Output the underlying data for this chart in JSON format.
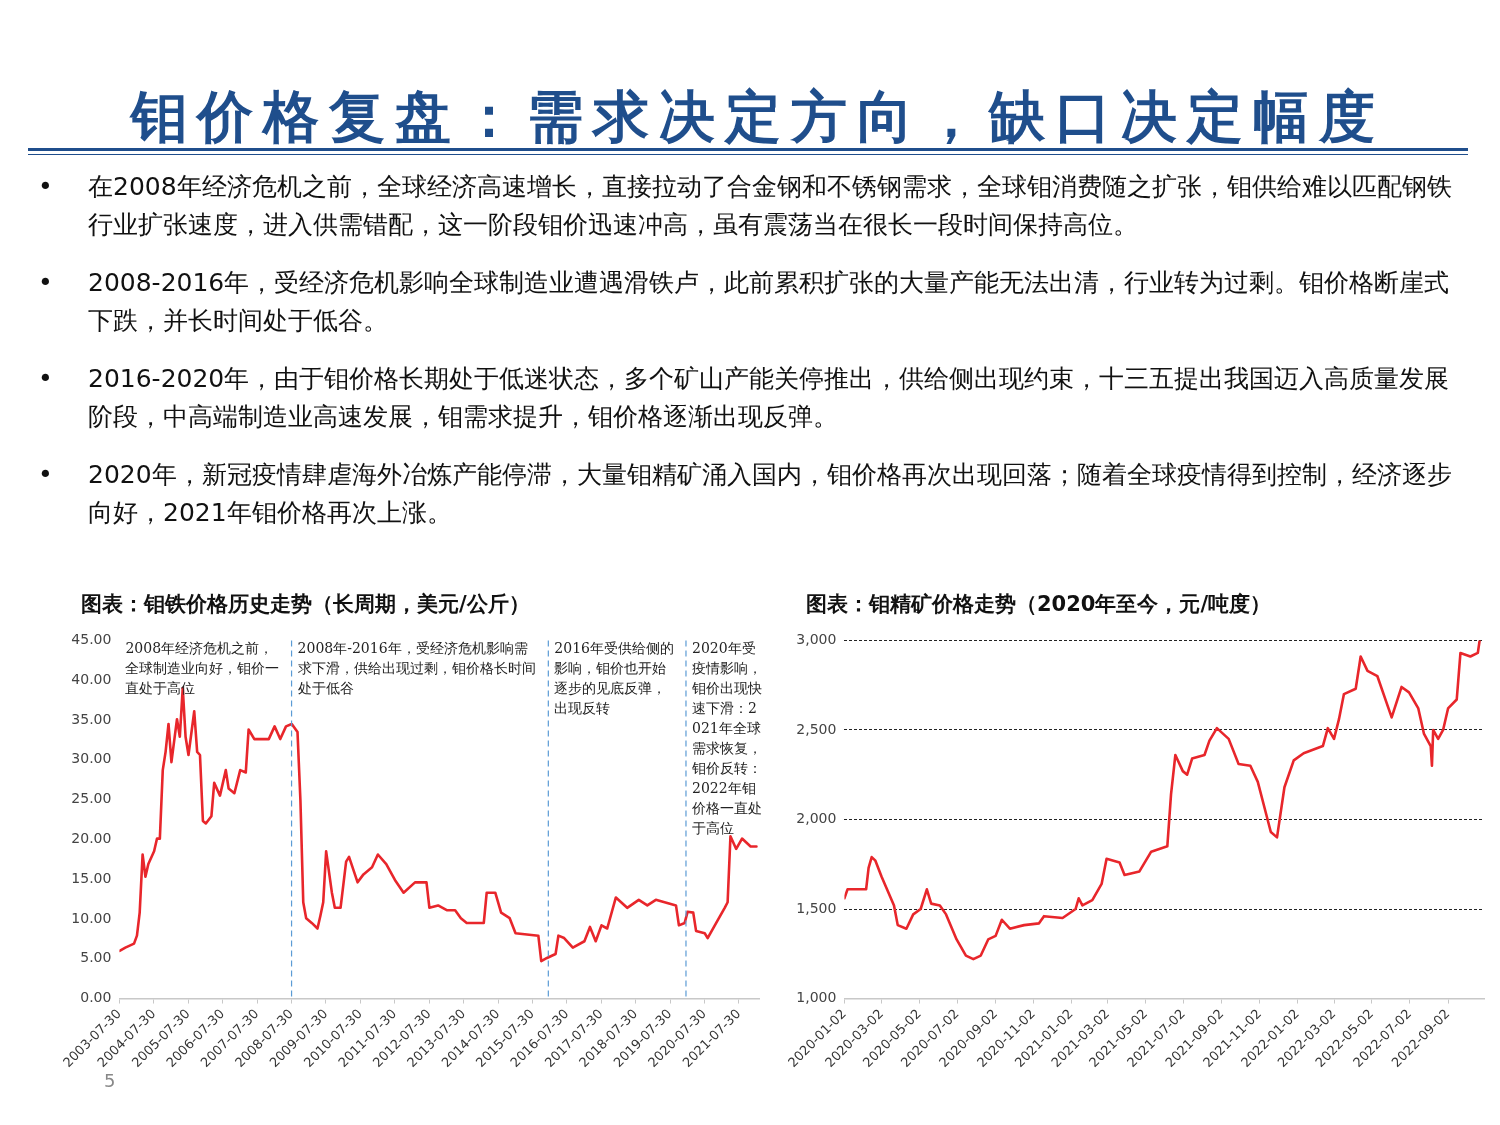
{
  "chart_data": [
    {
      "type": "other",
      "title": "钼价格复盘：需求决定方向，缺口决定幅度",
      "annotations": [
        "•\t在2008年经济危机之前，全球经济高速增长，直接拉动了合金钢和不锈钢需求，全球钼消费随之扩张，钼供给难以匹配钢铁行业扩张速度，进入供需错配，这一阶段钼价迅速冲高，虽有震荡当在很长一段时间保持高位。",
        "•\t2008-2016年，受经济危机影响全球制造业遭遇滑铁卢，此前累积扩张的大量产能无法出清，行业转为过剩。钼价格断崖式下跌，并长时间处于低谷。",
        "•\t2016-2020年，由于钼价格长期处于低迷状态，多个矿山产能关停推出，供给侧出现约束，十三五提出我国迈入高质量发展阶段，中高端制造业高速发展，钼需求提升，钼价格逐渐出现反弹。",
        "•\t2020年，新冠疫情肆虐海外冶炼产能停滞，大量钼精矿涌入国内，钼价格再次出现回落；随着全球疫情得到控制，经济逐步向好，2021年钼价格再次上涨。",
        "5"
      ]
    },
    {
      "type": "line",
      "title": "图表：钼铁价格历史走势（长周期，美元/公斤）",
      "marker": "none",
      "grid": false,
      "xlim": [
        "2003-07-30",
        "2022-02-28"
      ],
      "xticks": [
        "2003-07-30",
        "2004-07-30",
        "2005-07-30",
        "2006-07-30",
        "2007-07-30",
        "2008-07-30",
        "2009-07-30",
        "2010-07-30",
        "2011-07-30",
        "2012-07-30",
        "2013-07-30",
        "2014-07-30",
        "2015-07-30",
        "2016-07-30",
        "2017-07-30",
        "2018-07-30",
        "2019-07-30",
        "2020-07-30",
        "2021-07-30"
      ],
      "ylim": [
        0,
        45
      ],
      "yticks": [
        {
          "value": 0,
          "label": "0.00"
        },
        {
          "value": 5,
          "label": "5.00"
        },
        {
          "value": 10,
          "label": "10.00"
        },
        {
          "value": 15,
          "label": "15.00"
        },
        {
          "value": 20,
          "label": "20.00"
        },
        {
          "value": 25,
          "label": "25.00"
        },
        {
          "value": 30,
          "label": "30.00"
        },
        {
          "value": 35,
          "label": "35.00"
        },
        {
          "value": 40,
          "label": "40.00"
        },
        {
          "value": 45,
          "label": "45.00"
        }
      ],
      "x": [
        "2003-08",
        "2003-10",
        "2004-01",
        "2004-02",
        "2004-03",
        "2004-04",
        "2004-05",
        "2004-06",
        "2004-08",
        "2004-09",
        "2004-10",
        "2004-11",
        "2004-12",
        "2005-01",
        "2005-02",
        "2005-04",
        "2005-05",
        "2005-06",
        "2005-07",
        "2005-08",
        "2005-10",
        "2005-11",
        "2005-12",
        "2006-01",
        "2006-02",
        "2006-04",
        "2006-05",
        "2006-07",
        "2006-09",
        "2006-10",
        "2006-12",
        "2007-02",
        "2007-04",
        "2007-05",
        "2007-07",
        "2007-12",
        "2008-02",
        "2008-04",
        "2008-06",
        "2008-08",
        "2008-10",
        "2008-11",
        "2008-12",
        "2009-01",
        "2009-03",
        "2009-05",
        "2009-06",
        "2009-07",
        "2009-08",
        "2009-10",
        "2009-11",
        "2010-01",
        "2010-03",
        "2010-04",
        "2010-07",
        "2010-09",
        "2010-12",
        "2011-02",
        "2011-05",
        "2011-08",
        "2011-11",
        "2012-03",
        "2012-07",
        "2012-08",
        "2012-11",
        "2013-02",
        "2013-05",
        "2013-07",
        "2013-09",
        "2014-03",
        "2014-04",
        "2014-07",
        "2014-09",
        "2014-12",
        "2015-02",
        "2015-10",
        "2015-11",
        "2016-01",
        "2016-04",
        "2016-05",
        "2016-07",
        "2016-10",
        "2017-02",
        "2017-04",
        "2017-06",
        "2017-08",
        "2017-10",
        "2018-01",
        "2018-05",
        "2018-09",
        "2018-12",
        "2019-03",
        "2019-10",
        "2019-11",
        "2020-01",
        "2020-02",
        "2020-04",
        "2020-05",
        "2020-08",
        "2020-09",
        "2020-12",
        "2021-03",
        "2021-04",
        "2021-05",
        "2021-07",
        "2021-09",
        "2021-12",
        "2022-02"
      ],
      "series": [
        {
          "color": "#e8262b",
          "values": [
            6.0,
            6.4,
            6.9,
            7.9,
            10.8,
            18.1,
            15.3,
            16.9,
            18.5,
            20.1,
            20.1,
            28.7,
            31.0,
            34.5,
            29.7,
            35.1,
            32.9,
            39.0,
            32.9,
            30.6,
            36.1,
            31.0,
            30.6,
            22.3,
            22.0,
            22.9,
            27.1,
            25.5,
            28.7,
            26.4,
            25.8,
            28.7,
            28.4,
            33.8,
            32.6,
            32.6,
            34.2,
            32.6,
            34.2,
            34.5,
            33.5,
            24.9,
            12.1,
            10.1,
            9.5,
            8.8,
            10.4,
            12.1,
            18.5,
            13.3,
            11.4,
            11.4,
            17.2,
            17.8,
            14.6,
            15.6,
            16.5,
            18.1,
            16.9,
            14.9,
            13.3,
            14.6,
            14.6,
            11.4,
            11.7,
            11.1,
            11.1,
            10.1,
            9.5,
            9.5,
            13.3,
            13.3,
            10.8,
            10.1,
            8.2,
            7.9,
            4.7,
            5.1,
            5.6,
            7.9,
            7.6,
            6.4,
            7.2,
            9.0,
            7.2,
            9.2,
            8.8,
            12.7,
            11.4,
            12.4,
            11.7,
            12.4,
            11.7,
            9.2,
            9.5,
            10.9,
            10.8,
            8.5,
            8.2,
            7.6,
            9.5,
            11.4,
            12.1,
            20.4,
            18.8,
            20.1,
            19.1,
            19.1
          ]
        }
      ],
      "ref_lines": [
        {
          "axis": "x",
          "value": "2008-07-30",
          "color": "#5b9bd5",
          "line_style": "dashed"
        },
        {
          "axis": "x",
          "value": "2016-01-15",
          "color": "#5b9bd5",
          "line_style": "dashed"
        },
        {
          "axis": "x",
          "value": "2020-01-15",
          "color": "#5b9bd5",
          "line_style": "dashed"
        }
      ],
      "annotations": [
        "2008年经济危机之前，全球制造业向好，钼价一直处于高位",
        "2008年-2016年，受经济危机影响需求下滑，供给出现过剩，钼价格长时间处于低谷",
        "2016年受供给侧的影响，钼价也开始逐步的见底反弹，出现反转",
        "2020年受疫情影响，钼价出现快速下滑：2021年全球需求恢复，钼价反转：2022年钼价格一直处于高位"
      ]
    },
    {
      "type": "line",
      "title": "图表：钼精矿价格走势（2020年至今，元/吨度）",
      "marker": "none",
      "grid": "y",
      "xlim": [
        "2020-01-02",
        "2022-10-30"
      ],
      "xticks": [
        "2020-01-02",
        "2020-03-02",
        "2020-05-02",
        "2020-07-02",
        "2020-09-02",
        "2020-11-02",
        "2021-01-02",
        "2021-03-02",
        "2021-05-02",
        "2021-07-02",
        "2021-09-02",
        "2021-11-02",
        "2022-01-02",
        "2022-03-02",
        "2022-05-02",
        "2022-07-02",
        "2022-09-02"
      ],
      "ylim": [
        1000,
        3000
      ],
      "yticks": [
        {
          "value": 1000,
          "label": "1,000"
        },
        {
          "value": 1500,
          "label": "1,500"
        },
        {
          "value": 2000,
          "label": "2,000"
        },
        {
          "value": 2500,
          "label": "2,500"
        },
        {
          "value": 3000,
          "label": "3,000"
        }
      ],
      "x": [
        "2020-01-02",
        "2020-01-07",
        "2020-02-06",
        "2020-02-10",
        "2020-02-15",
        "2020-02-21",
        "2020-03-02",
        "2020-03-22",
        "2020-03-28",
        "2020-04-11",
        "2020-04-22",
        "2020-05-04",
        "2020-05-14",
        "2020-05-21",
        "2020-06-04",
        "2020-06-14",
        "2020-07-01",
        "2020-07-16",
        "2020-07-28",
        "2020-08-09",
        "2020-08-21",
        "2020-09-02",
        "2020-09-12",
        "2020-09-25",
        "2020-10-18",
        "2020-11-11",
        "2020-11-19",
        "2020-12-19",
        "2021-01-09",
        "2021-01-14",
        "2021-01-20",
        "2021-02-05",
        "2021-02-20",
        "2021-02-28",
        "2021-03-21",
        "2021-03-29",
        "2021-04-22",
        "2021-05-11",
        "2021-06-06",
        "2021-06-12",
        "2021-06-19",
        "2021-07-01",
        "2021-07-08",
        "2021-07-16",
        "2021-08-05",
        "2021-08-13",
        "2021-08-25",
        "2021-09-13",
        "2021-09-29",
        "2021-10-18",
        "2021-10-30",
        "2021-11-11",
        "2021-11-20",
        "2021-11-30",
        "2021-12-12",
        "2021-12-27",
        "2022-01-12",
        "2022-02-12",
        "2022-02-20",
        "2022-03-02",
        "2022-03-10",
        "2022-03-18",
        "2022-04-06",
        "2022-04-14",
        "2022-04-25",
        "2022-05-11",
        "2022-05-26",
        "2022-06-03",
        "2022-06-19",
        "2022-07-01",
        "2022-07-16",
        "2022-07-25",
        "2022-08-05",
        "2022-08-07",
        "2022-08-09",
        "2022-08-17",
        "2022-08-25",
        "2022-09-02",
        "2022-09-16",
        "2022-09-22",
        "2022-10-08",
        "2022-10-20",
        "2022-10-23"
      ],
      "series": [
        {
          "color": "#e8262b",
          "values": [
            1560,
            1610,
            1610,
            1730,
            1790,
            1770,
            1680,
            1520,
            1410,
            1390,
            1470,
            1500,
            1610,
            1530,
            1520,
            1470,
            1330,
            1240,
            1220,
            1240,
            1330,
            1350,
            1440,
            1390,
            1410,
            1420,
            1460,
            1450,
            1500,
            1560,
            1520,
            1550,
            1640,
            1780,
            1760,
            1690,
            1710,
            1820,
            1850,
            2140,
            2360,
            2270,
            2250,
            2340,
            2360,
            2440,
            2510,
            2450,
            2310,
            2300,
            2210,
            2050,
            1930,
            1900,
            2180,
            2330,
            2370,
            2410,
            2510,
            2450,
            2560,
            2700,
            2730,
            2910,
            2830,
            2800,
            2650,
            2570,
            2740,
            2710,
            2620,
            2480,
            2410,
            2300,
            2500,
            2450,
            2500,
            2620,
            2670,
            2930,
            2910,
            2930,
            3000
          ]
        }
      ]
    }
  ]
}
